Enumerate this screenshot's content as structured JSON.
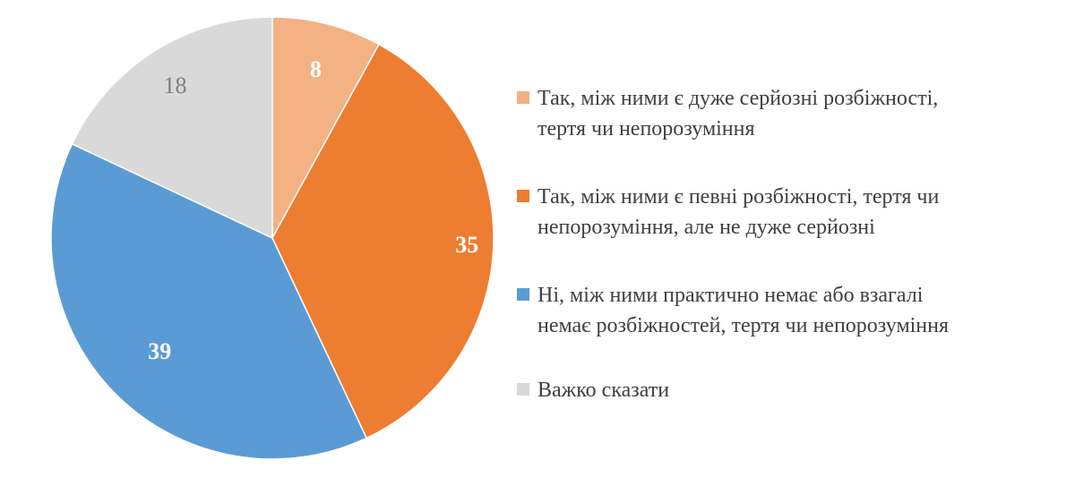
{
  "chart_data": {
    "type": "pie",
    "start_angle_deg": 0,
    "direction": "clockwise",
    "legend_position": "right",
    "slices": [
      {
        "label": "Так, між ними є дуже серйозні розбіжності, тертя чи непорозуміння",
        "legend_lines": [
          "Так, між ними є дуже серйозні розбіжності,",
          "тертя чи непорозуміння"
        ],
        "value": 8,
        "value_label": "8",
        "color": "#f4b183",
        "label_color": "#ffffff",
        "label_bold": true
      },
      {
        "label": "Так, між ними є певні розбіжності, тертя чи непорозуміння, але не дуже серйозні",
        "legend_lines": [
          "Так, між ними є певні розбіжності, тертя чи",
          "непорозуміння, але не дуже серйозні"
        ],
        "value": 35,
        "value_label": "35",
        "color": "#ed7d31",
        "label_color": "#ffffff",
        "label_bold": true
      },
      {
        "label": "Ні, між ними практично немає або взагалі немає розбіжностей, тертя чи непорозуміння",
        "legend_lines": [
          "Ні, між ними практично немає або взагалі",
          "немає розбіжностей, тертя чи непорозуміння"
        ],
        "value": 39,
        "value_label": "39",
        "color": "#5b9bd5",
        "label_color": "#ffffff",
        "label_bold": true
      },
      {
        "label": "Важко сказати",
        "legend_lines": [
          "Важко сказати"
        ],
        "value": 18,
        "value_label": "18",
        "color": "#d9d9d9",
        "label_color": "#7f7f7f",
        "label_bold": false
      }
    ]
  }
}
